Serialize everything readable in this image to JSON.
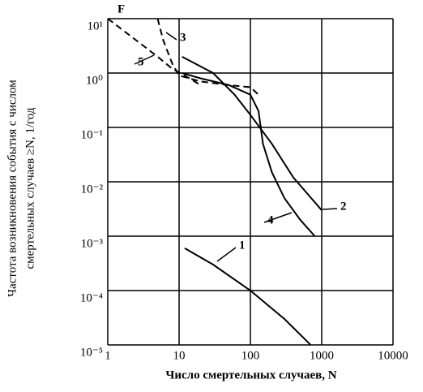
{
  "chart_data": {
    "type": "line",
    "log_x": true,
    "log_y": true,
    "grid": true,
    "xlabel": "Число смертельных случаев, N",
    "ylabel": [
      "Частота возникновения события с числом",
      "смертельных случаев ≥N, 1/год"
    ],
    "annotations": [
      "F"
    ],
    "xlim": [
      1,
      10000
    ],
    "xticks": [
      1,
      10,
      100,
      1000,
      10000
    ],
    "ylim": [
      1e-05,
      10
    ],
    "yticks": [
      {
        "value": 1e-05,
        "label": "10⁻⁵"
      },
      {
        "value": 0.0001,
        "label": "10⁻⁴"
      },
      {
        "value": 0.001,
        "label": "10⁻³"
      },
      {
        "value": 0.01,
        "label": "10⁻²"
      },
      {
        "value": 0.1,
        "label": "10⁻¹"
      },
      {
        "value": 1,
        "label": "10⁰"
      },
      {
        "value": 10,
        "label": "10¹"
      }
    ],
    "series": [
      {
        "name": "1",
        "color": "#000000",
        "style": "solid",
        "x": [
          12,
          30,
          100,
          300,
          700
        ],
        "values": [
          0.0006,
          0.0003,
          0.0001,
          3e-05,
          1e-05
        ]
      },
      {
        "name": "2",
        "color": "#000000",
        "style": "solid",
        "x": [
          11,
          30,
          60,
          100,
          200,
          400,
          1000
        ],
        "values": [
          2,
          1,
          0.4,
          0.17,
          0.05,
          0.012,
          0.003
        ]
      },
      {
        "name": "3",
        "color": "#000000",
        "style": "dashed",
        "x": [
          5,
          6,
          8,
          10,
          20,
          50,
          100,
          130
        ],
        "values": [
          10,
          4,
          1.5,
          0.9,
          0.7,
          0.6,
          0.55,
          0.4
        ]
      },
      {
        "name": "4",
        "color": "#000000",
        "style": "solid",
        "x": [
          11,
          20,
          50,
          100,
          130,
          150,
          200,
          300,
          500,
          800
        ],
        "values": [
          1,
          0.8,
          0.6,
          0.4,
          0.2,
          0.05,
          0.015,
          0.005,
          0.002,
          0.001
        ]
      },
      {
        "name": "5",
        "color": "#000000",
        "style": "dashed",
        "x": [
          1,
          2,
          5,
          8,
          12,
          20
        ],
        "values": [
          10,
          5,
          2,
          1.2,
          0.9,
          0.6
        ]
      }
    ]
  }
}
